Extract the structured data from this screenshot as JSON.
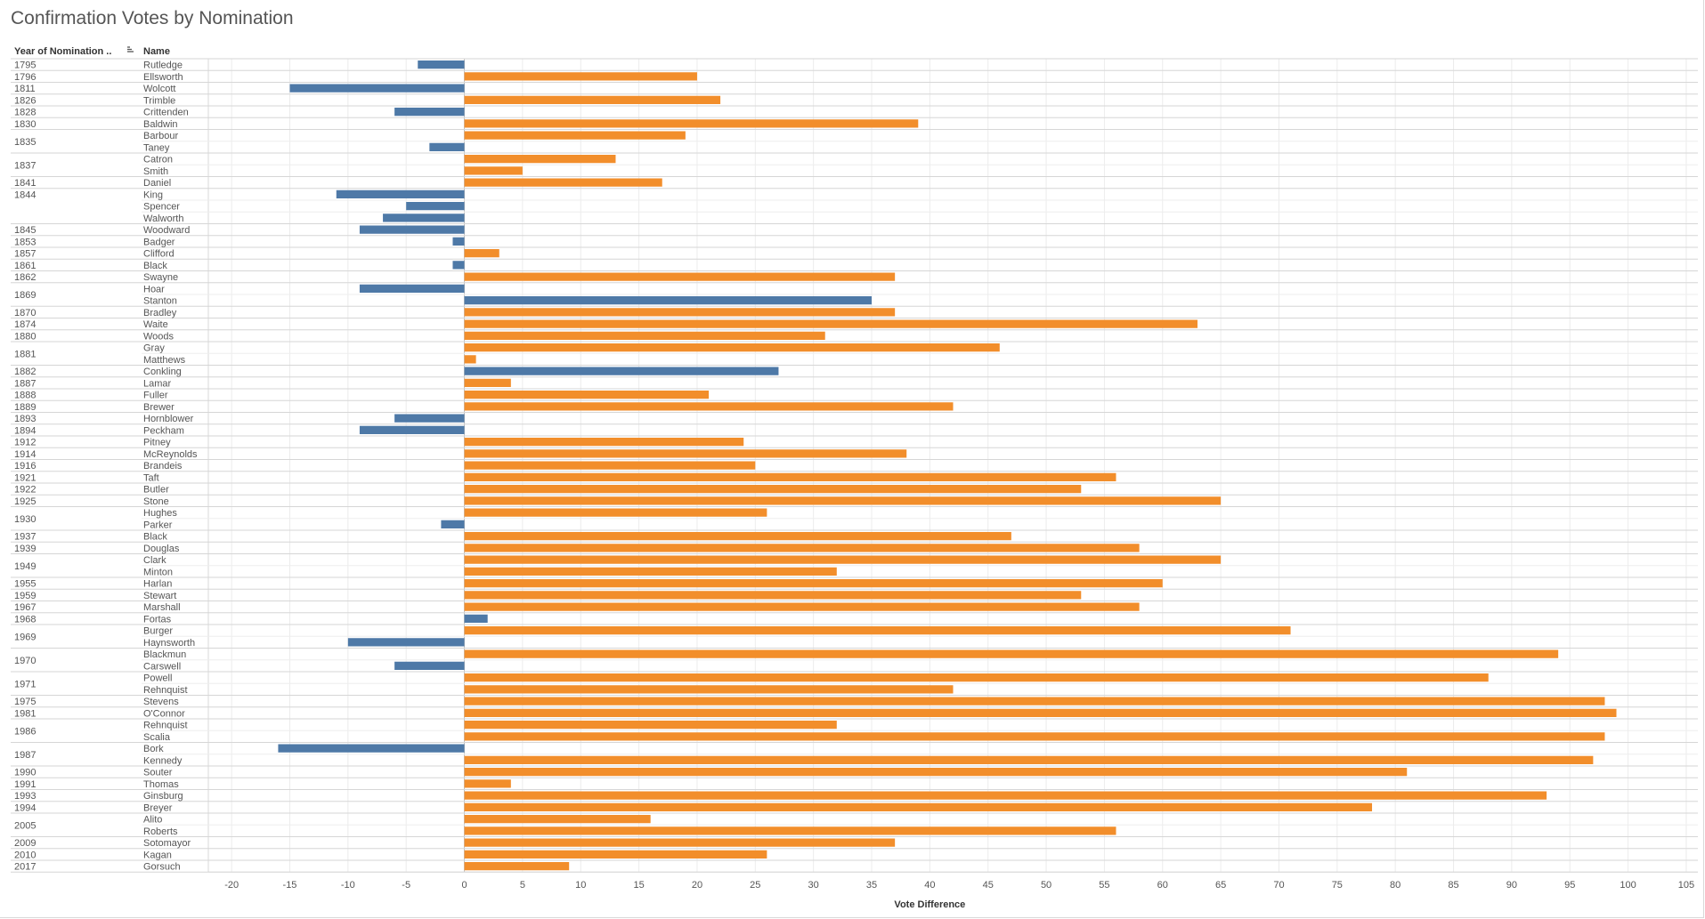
{
  "chart_data": {
    "type": "bar",
    "orientation": "horizontal",
    "title": "Confirmation Votes by Nomination",
    "column_headers": {
      "year": "Year of Nomination ..",
      "name": "Name"
    },
    "xlabel": "Vote Difference",
    "xlim": [
      -22,
      106
    ],
    "xticks": [
      -20,
      -15,
      -10,
      -5,
      0,
      5,
      10,
      15,
      20,
      25,
      30,
      35,
      40,
      45,
      50,
      55,
      60,
      65,
      70,
      75,
      80,
      85,
      90,
      95,
      100,
      105
    ],
    "grid": true,
    "colors": {
      "positive": "#f28e2b",
      "negative": "#4e79a7"
    },
    "rows": [
      {
        "year": "1795",
        "name": "Rutledge",
        "value": -4
      },
      {
        "year": "1796",
        "name": "Ellsworth",
        "value": 20
      },
      {
        "year": "1811",
        "name": "Wolcott",
        "value": -15
      },
      {
        "year": "1826",
        "name": "Trimble",
        "value": 22
      },
      {
        "year": "1828",
        "name": "Crittenden",
        "value": -6
      },
      {
        "year": "1830",
        "name": "Baldwin",
        "value": 39
      },
      {
        "year": "1835",
        "name": "Barbour",
        "value": 19
      },
      {
        "year": "",
        "name": "Taney",
        "value": -3
      },
      {
        "year": "1837",
        "name": "Catron",
        "value": 13
      },
      {
        "year": "",
        "name": "Smith",
        "value": 5
      },
      {
        "year": "1841",
        "name": "Daniel",
        "value": 17
      },
      {
        "year": "1844",
        "name": "King",
        "value": -11
      },
      {
        "year": "",
        "name": "Spencer",
        "value": -5
      },
      {
        "year": "",
        "name": "Walworth",
        "value": -7
      },
      {
        "year": "1845",
        "name": "Woodward",
        "value": -9
      },
      {
        "year": "1853",
        "name": "Badger",
        "value": -1
      },
      {
        "year": "1857",
        "name": "Clifford",
        "value": 3
      },
      {
        "year": "1861",
        "name": "Black",
        "value": -1
      },
      {
        "year": "1862",
        "name": "Swayne",
        "value": 37
      },
      {
        "year": "1869",
        "name": "Hoar",
        "value": -9
      },
      {
        "year": "",
        "name": "Stanton",
        "value": 35,
        "negative": true
      },
      {
        "year": "1870",
        "name": "Bradley",
        "value": 37
      },
      {
        "year": "1874",
        "name": "Waite",
        "value": 63
      },
      {
        "year": "1880",
        "name": "Woods",
        "value": 31
      },
      {
        "year": "1881",
        "name": "Gray",
        "value": 46
      },
      {
        "year": "",
        "name": "Matthews",
        "value": 1
      },
      {
        "year": "1882",
        "name": "Conkling",
        "value": 27,
        "negative": true
      },
      {
        "year": "1887",
        "name": "Lamar",
        "value": 4
      },
      {
        "year": "1888",
        "name": "Fuller",
        "value": 21
      },
      {
        "year": "1889",
        "name": "Brewer",
        "value": 42
      },
      {
        "year": "1893",
        "name": "Hornblower",
        "value": -6
      },
      {
        "year": "1894",
        "name": "Peckham",
        "value": -9
      },
      {
        "year": "1912",
        "name": "Pitney",
        "value": 24
      },
      {
        "year": "1914",
        "name": "McReynolds",
        "value": 38
      },
      {
        "year": "1916",
        "name": "Brandeis",
        "value": 25
      },
      {
        "year": "1921",
        "name": "Taft",
        "value": 56
      },
      {
        "year": "1922",
        "name": "Butler",
        "value": 53
      },
      {
        "year": "1925",
        "name": "Stone",
        "value": 65
      },
      {
        "year": "1930",
        "name": "Hughes",
        "value": 26
      },
      {
        "year": "",
        "name": "Parker",
        "value": -2
      },
      {
        "year": "1937",
        "name": "Black",
        "value": 47
      },
      {
        "year": "1939",
        "name": "Douglas",
        "value": 58
      },
      {
        "year": "1949",
        "name": "Clark",
        "value": 65
      },
      {
        "year": "",
        "name": "Minton",
        "value": 32
      },
      {
        "year": "1955",
        "name": "Harlan",
        "value": 60
      },
      {
        "year": "1959",
        "name": "Stewart",
        "value": 53
      },
      {
        "year": "1967",
        "name": "Marshall",
        "value": 58
      },
      {
        "year": "1968",
        "name": "Fortas",
        "value": 2,
        "negative": true
      },
      {
        "year": "1969",
        "name": "Burger",
        "value": 71
      },
      {
        "year": "",
        "name": "Haynsworth",
        "value": -10
      },
      {
        "year": "1970",
        "name": "Blackmun",
        "value": 94
      },
      {
        "year": "",
        "name": "Carswell",
        "value": -6
      },
      {
        "year": "1971",
        "name": "Powell",
        "value": 88
      },
      {
        "year": "",
        "name": "Rehnquist",
        "value": 42
      },
      {
        "year": "1975",
        "name": "Stevens",
        "value": 98
      },
      {
        "year": "1981",
        "name": "O'Connor",
        "value": 99
      },
      {
        "year": "1986",
        "name": "Rehnquist",
        "value": 32
      },
      {
        "year": "",
        "name": "Scalia",
        "value": 98
      },
      {
        "year": "1987",
        "name": "Bork",
        "value": -16
      },
      {
        "year": "",
        "name": "Kennedy",
        "value": 97
      },
      {
        "year": "1990",
        "name": "Souter",
        "value": 81
      },
      {
        "year": "1991",
        "name": "Thomas",
        "value": 4
      },
      {
        "year": "1993",
        "name": "Ginsburg",
        "value": 93
      },
      {
        "year": "1994",
        "name": "Breyer",
        "value": 78
      },
      {
        "year": "2005",
        "name": "Alito",
        "value": 16
      },
      {
        "year": "",
        "name": "Roberts",
        "value": 56
      },
      {
        "year": "2009",
        "name": "Sotomayor",
        "value": 37
      },
      {
        "year": "2010",
        "name": "Kagan",
        "value": 26
      },
      {
        "year": "2017",
        "name": "Gorsuch",
        "value": 9
      }
    ]
  }
}
